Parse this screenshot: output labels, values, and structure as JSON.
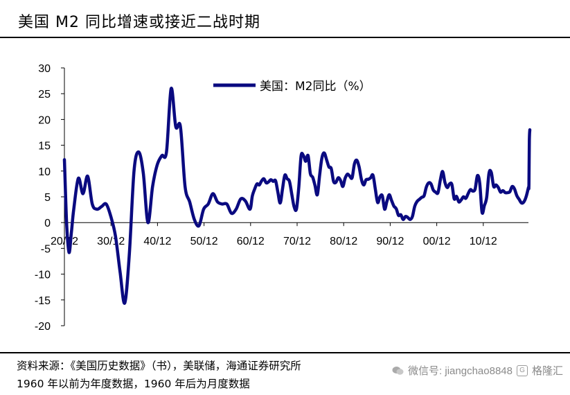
{
  "header": {
    "title": "美国 M2 同比增速或接近二战时期"
  },
  "footer": {
    "source": "资料来源：《美国历史数据》（书），美联储，海通证券研究所",
    "note": "1960 年以前为年度数据，1960 年后为月度数据"
  },
  "watermark": {
    "wechat": "微信号: jiangchao8848",
    "brand": "格隆汇"
  },
  "chart_data": {
    "type": "line",
    "ylim": [
      -20,
      30
    ],
    "yticks": [
      "30",
      "25",
      "20",
      "15",
      "10",
      "5",
      "0",
      "-5",
      "-10",
      "-15",
      "-20"
    ],
    "xticks": [
      "20/12",
      "30/12",
      "40/12",
      "50/12",
      "60/12",
      "70/12",
      "80/12",
      "90/12",
      "00/12",
      "10/12"
    ],
    "xlim": [
      "1920",
      "2020"
    ],
    "legend_position": "top-center",
    "grid": false,
    "color": "#0a0a80",
    "series": [
      {
        "name": "美国：M2同比（%）",
        "points": [
          [
            "1920",
            12.2
          ],
          [
            "1920.5",
            -0.5
          ],
          [
            "1921",
            -5.8
          ],
          [
            "1921.5",
            -2.0
          ],
          [
            "1922",
            2.5
          ],
          [
            "1923",
            8.6
          ],
          [
            "1924",
            5.6
          ],
          [
            "1925",
            9.0
          ],
          [
            "1926",
            3.6
          ],
          [
            "1927",
            2.6
          ],
          [
            "1928",
            3.1
          ],
          [
            "1929",
            3.6
          ],
          [
            "1930",
            1.2
          ],
          [
            "1931",
            -2.6
          ],
          [
            "1932",
            -9.6
          ],
          [
            "1933",
            -15.6
          ],
          [
            "1934",
            -6.0
          ],
          [
            "1935",
            10.0
          ],
          [
            "1936",
            13.7
          ],
          [
            "1937",
            9.6
          ],
          [
            "1938",
            0.0
          ],
          [
            "1939",
            7.0
          ],
          [
            "1940",
            11.2
          ],
          [
            "1941",
            13.0
          ],
          [
            "1942",
            13.7
          ],
          [
            "1943",
            26.0
          ],
          [
            "1944",
            18.6
          ],
          [
            "1945",
            18.6
          ],
          [
            "1946",
            7.0
          ],
          [
            "1947",
            4.0
          ],
          [
            "1948",
            0.6
          ],
          [
            "1949",
            -0.6
          ],
          [
            "1950",
            2.6
          ],
          [
            "1951",
            3.6
          ],
          [
            "1952",
            5.6
          ],
          [
            "1953",
            4.0
          ],
          [
            "1954",
            3.6
          ],
          [
            "1955",
            3.6
          ],
          [
            "1956",
            1.8
          ],
          [
            "1957",
            2.6
          ],
          [
            "1958",
            4.6
          ],
          [
            "1959",
            4.2
          ],
          [
            "1960",
            2.6
          ],
          [
            "1960.5",
            5.2
          ],
          [
            "1961",
            6.5
          ],
          [
            "1961.5",
            7.5
          ],
          [
            "1962",
            7.3
          ],
          [
            "1962.5",
            8.1
          ],
          [
            "1963",
            8.5
          ],
          [
            "1963.5",
            7.7
          ],
          [
            "1964",
            7.9
          ],
          [
            "1964.5",
            8.3
          ],
          [
            "1965",
            8.0
          ],
          [
            "1965.5",
            8.1
          ],
          [
            "1966",
            5.9
          ],
          [
            "1966.5",
            3.8
          ],
          [
            "1967",
            6.5
          ],
          [
            "1967.5",
            9.2
          ],
          [
            "1968",
            8.5
          ],
          [
            "1968.5",
            8.0
          ],
          [
            "1969",
            5.5
          ],
          [
            "1969.5",
            3.1
          ],
          [
            "1970",
            2.6
          ],
          [
            "1970.5",
            6.8
          ],
          [
            "1971",
            12.9
          ],
          [
            "1971.5",
            13.0
          ],
          [
            "1972",
            11.9
          ],
          [
            "1972.5",
            13.0
          ],
          [
            "1973",
            9.5
          ],
          [
            "1973.5",
            8.8
          ],
          [
            "1974",
            7.2
          ],
          [
            "1974.5",
            5.4
          ],
          [
            "1975",
            9.2
          ],
          [
            "1975.5",
            12.6
          ],
          [
            "1976",
            13.5
          ],
          [
            "1976.5",
            12.2
          ],
          [
            "1977",
            10.8
          ],
          [
            "1977.5",
            10.5
          ],
          [
            "1978",
            8.0
          ],
          [
            "1978.5",
            7.8
          ],
          [
            "1979",
            8.7
          ],
          [
            "1979.5",
            8.2
          ],
          [
            "1980",
            7.0
          ],
          [
            "1980.5",
            8.6
          ],
          [
            "1981",
            9.4
          ],
          [
            "1981.5",
            9.0
          ],
          [
            "1982",
            8.7
          ],
          [
            "1982.5",
            11.4
          ],
          [
            "1983",
            12.1
          ],
          [
            "1983.5",
            10.8
          ],
          [
            "1984",
            8.4
          ],
          [
            "1984.5",
            7.3
          ],
          [
            "1985",
            8.3
          ],
          [
            "1985.5",
            8.4
          ],
          [
            "1986",
            8.7
          ],
          [
            "1986.5",
            9.2
          ],
          [
            "1987",
            6.5
          ],
          [
            "1987.5",
            3.9
          ],
          [
            "1988",
            5.0
          ],
          [
            "1988.5",
            5.2
          ],
          [
            "1989",
            2.6
          ],
          [
            "1989.5",
            4.1
          ],
          [
            "1990",
            5.4
          ],
          [
            "1990.5",
            4.3
          ],
          [
            "1991",
            3.2
          ],
          [
            "1991.5",
            2.7
          ],
          [
            "1992",
            1.4
          ],
          [
            "1992.5",
            1.5
          ],
          [
            "1993",
            0.6
          ],
          [
            "1993.5",
            1.2
          ],
          [
            "1994",
            1.0
          ],
          [
            "1994.5",
            0.6
          ],
          [
            "1995",
            1.2
          ],
          [
            "1995.5",
            3.2
          ],
          [
            "1996",
            4.1
          ],
          [
            "1996.5",
            4.5
          ],
          [
            "1997",
            4.9
          ],
          [
            "1997.5",
            5.2
          ],
          [
            "1998",
            6.9
          ],
          [
            "1998.5",
            7.7
          ],
          [
            "1999",
            7.5
          ],
          [
            "1999.5",
            6.3
          ],
          [
            "2000",
            5.9
          ],
          [
            "2000.5",
            5.8
          ],
          [
            "2001",
            8.2
          ],
          [
            "2001.5",
            9.9
          ],
          [
            "2002",
            7.8
          ],
          [
            "2002.5",
            6.8
          ],
          [
            "2003",
            7.5
          ],
          [
            "2003.5",
            7.4
          ],
          [
            "2004",
            4.6
          ],
          [
            "2004.5",
            5.1
          ],
          [
            "2005",
            4.0
          ],
          [
            "2005.5",
            4.4
          ],
          [
            "2006",
            5.0
          ],
          [
            "2006.5",
            4.7
          ],
          [
            "2007",
            5.6
          ],
          [
            "2007.5",
            6.4
          ],
          [
            "2008",
            6.1
          ],
          [
            "2008.5",
            6.5
          ],
          [
            "2009",
            9.1
          ],
          [
            "2009.5",
            7.7
          ],
          [
            "2010",
            2.0
          ],
          [
            "2010.5",
            3.3
          ],
          [
            "2011",
            4.9
          ],
          [
            "2011.5",
            9.6
          ],
          [
            "2012",
            9.7
          ],
          [
            "2012.5",
            7.0
          ],
          [
            "2013",
            7.3
          ],
          [
            "2013.5",
            6.8
          ],
          [
            "2014",
            5.9
          ],
          [
            "2014.5",
            6.2
          ],
          [
            "2015",
            5.8
          ],
          [
            "2015.5",
            5.8
          ],
          [
            "2016",
            6.0
          ],
          [
            "2016.5",
            7.0
          ],
          [
            "2017",
            6.5
          ],
          [
            "2017.5",
            5.2
          ],
          [
            "2018",
            4.5
          ],
          [
            "2018.5",
            3.8
          ],
          [
            "2019",
            4.0
          ],
          [
            "2019.5",
            5.0
          ],
          [
            "2020",
            6.8
          ],
          [
            "2020.1",
            7.3
          ],
          [
            "2020.2",
            16.0
          ],
          [
            "2020.3",
            18.0
          ]
        ]
      }
    ]
  }
}
